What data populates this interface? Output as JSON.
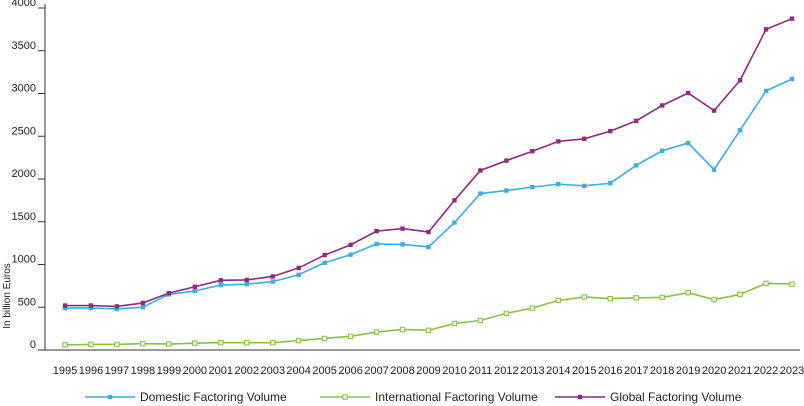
{
  "chart_data": {
    "type": "line",
    "ylabel": "In billion Euros",
    "ylim": [
      0,
      4000
    ],
    "yticks": [
      0,
      500,
      1000,
      1500,
      2000,
      2500,
      3000,
      3500,
      4000
    ],
    "x": [
      "1995",
      "1996",
      "1997",
      "1998",
      "1999",
      "2000",
      "2001",
      "2002",
      "2003",
      "2004",
      "2005",
      "2006",
      "2007",
      "2008",
      "2009",
      "2010",
      "2011",
      "2012",
      "2013",
      "2014",
      "2015",
      "2016",
      "2017",
      "2018",
      "2019",
      "2020",
      "2021",
      "2022",
      "2023"
    ],
    "grid": false,
    "legend": "bottom",
    "series": [
      {
        "name": "Domestic Factoring Volume",
        "color": "#3aaee0",
        "values": [
          490,
          490,
          480,
          500,
          650,
          690,
          760,
          770,
          800,
          880,
          1020,
          1115,
          1240,
          1235,
          1205,
          1490,
          1830,
          1865,
          1905,
          1940,
          1920,
          1950,
          2160,
          2330,
          2420,
          2110,
          2570,
          3030,
          3170
        ]
      },
      {
        "name": "International Factoring Volume",
        "color": "#8bc13f",
        "values": [
          60,
          65,
          65,
          75,
          70,
          80,
          85,
          85,
          85,
          110,
          135,
          160,
          210,
          240,
          230,
          310,
          345,
          430,
          490,
          580,
          620,
          600,
          610,
          615,
          670,
          590,
          650,
          780,
          770
        ]
      },
      {
        "name": "Global Factoring Volume",
        "color": "#8e2a82",
        "values": [
          520,
          520,
          510,
          550,
          665,
          740,
          815,
          820,
          860,
          960,
          1110,
          1230,
          1390,
          1420,
          1380,
          1750,
          2100,
          2215,
          2325,
          2440,
          2470,
          2560,
          2680,
          2860,
          3005,
          2800,
          3155,
          3750,
          3875
        ]
      }
    ]
  }
}
